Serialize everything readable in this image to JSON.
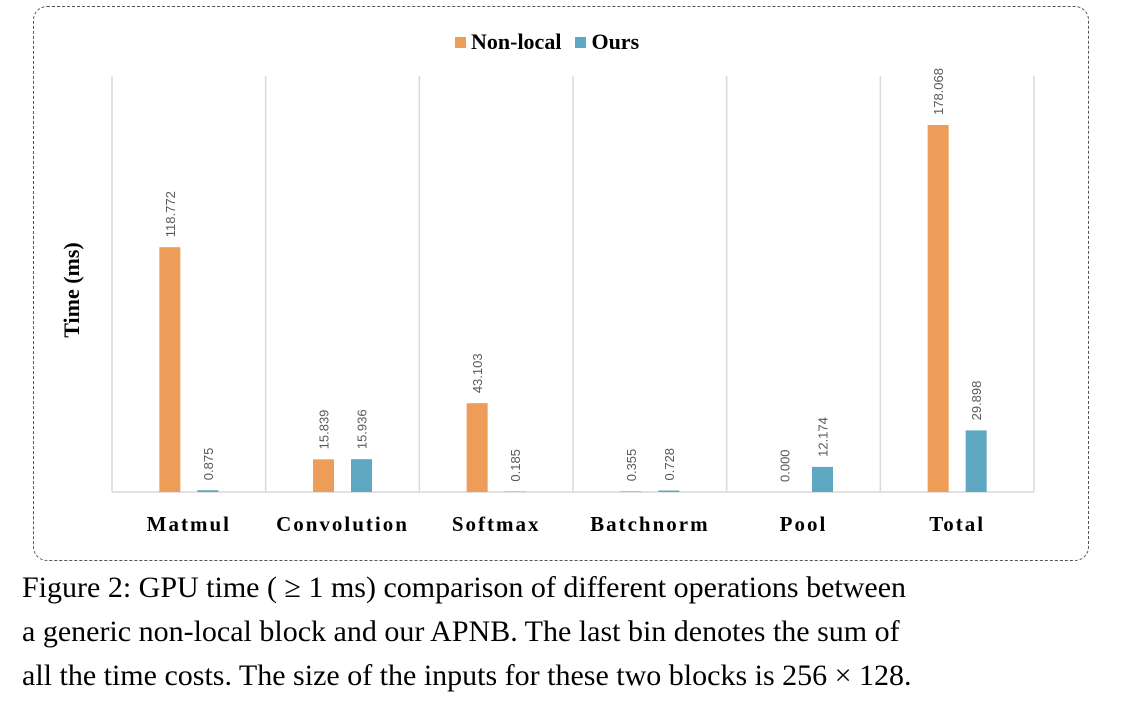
{
  "chart_data": {
    "type": "bar",
    "categories": [
      "Matmul",
      "Convolution",
      "Softmax",
      "Batchnorm",
      "Pool",
      "Total"
    ],
    "series": [
      {
        "name": "Non-local",
        "values": [
          118.772,
          15.839,
          43.103,
          0.355,
          0.0,
          178.068
        ],
        "labels": [
          "118.772",
          "15.839",
          "43.103",
          "0.355",
          "0.000",
          "178.068"
        ],
        "color": "#ED9D58"
      },
      {
        "name": "Ours",
        "values": [
          0.875,
          15.936,
          0.185,
          0.728,
          12.174,
          29.898
        ],
        "labels": [
          "0.875",
          "15.936",
          "0.185",
          "0.728",
          "12.174",
          "29.898"
        ],
        "color": "#5EA8C1"
      }
    ],
    "title": "",
    "xlabel": "",
    "ylabel": "Time (ms)",
    "ylim": [
      0,
      200
    ],
    "grid": "vertical category separators",
    "legend_position": "top-center"
  },
  "caption": {
    "lines": [
      "Figure 2: GPU time ( ≥ 1 ms) comparison of different operations between",
      "a generic non-local block and our APNB. The last bin denotes the sum of",
      "all the time costs. The size of the inputs for these two blocks is 256 × 128."
    ]
  }
}
